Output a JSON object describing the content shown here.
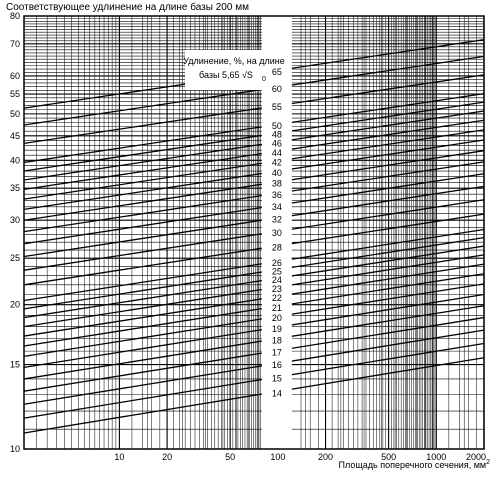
{
  "chart_data": {
    "type": "line",
    "title": "Соответствующее удлинение на длине базы 200 мм",
    "xlabel": "Площадь поперечного сечения, мм",
    "xlabel_sup": "2",
    "x_scale": "log",
    "y_scale": "log",
    "xlim": [
      2.5,
      2000
    ],
    "ylim": [
      10,
      80
    ],
    "grid": true,
    "x_ticks": [
      10,
      20,
      50,
      100,
      200,
      500,
      1000,
      2000
    ],
    "y_ticks": [
      10,
      15,
      20,
      25,
      30,
      35,
      40,
      45,
      50,
      55,
      60,
      70,
      80
    ],
    "series_label_title": "Удлинение, %, на длине базы 5,65 √S₀",
    "series_label_title_lines": [
      "Удлинение, %, на длине",
      "базы 5,65 √S",
      "0"
    ],
    "x": [
      2.5,
      2000
    ],
    "series": [
      {
        "name": "14",
        "values": [
          10.8,
          15.5
        ]
      },
      {
        "name": "15",
        "values": [
          11.6,
          16.6
        ]
      },
      {
        "name": "16",
        "values": [
          12.4,
          17.7
        ]
      },
      {
        "name": "17",
        "values": [
          13.2,
          18.8
        ]
      },
      {
        "name": "18",
        "values": [
          14.0,
          19.9
        ]
      },
      {
        "name": "19",
        "values": [
          14.8,
          21.0
        ]
      },
      {
        "name": "20",
        "values": [
          15.6,
          22.1
        ]
      },
      {
        "name": "21",
        "values": [
          16.4,
          23.2
        ]
      },
      {
        "name": "22",
        "values": [
          17.2,
          24.3
        ]
      },
      {
        "name": "23",
        "values": [
          18.0,
          25.4
        ]
      },
      {
        "name": "24",
        "values": [
          18.8,
          26.5
        ]
      },
      {
        "name": "25",
        "values": [
          19.6,
          27.6
        ]
      },
      {
        "name": "26",
        "values": [
          20.4,
          28.7
        ]
      },
      {
        "name": "28",
        "values": [
          22.0,
          30.9
        ]
      },
      {
        "name": "30",
        "values": [
          23.6,
          33.1
        ]
      },
      {
        "name": "32",
        "values": [
          25.2,
          35.3
        ]
      },
      {
        "name": "34",
        "values": [
          26.8,
          37.5
        ]
      },
      {
        "name": "36",
        "values": [
          28.4,
          39.7
        ]
      },
      {
        "name": "38",
        "values": [
          30.0,
          41.9
        ]
      },
      {
        "name": "40",
        "values": [
          31.6,
          44.1
        ]
      },
      {
        "name": "42",
        "values": [
          33.2,
          46.3
        ]
      },
      {
        "name": "44",
        "values": [
          34.8,
          48.5
        ]
      },
      {
        "name": "46",
        "values": [
          36.4,
          50.7
        ]
      },
      {
        "name": "48",
        "values": [
          38.0,
          52.9
        ]
      },
      {
        "name": "50",
        "values": [
          39.6,
          55.1
        ]
      },
      {
        "name": "55",
        "values": [
          43.4,
          60.3
        ]
      },
      {
        "name": "60",
        "values": [
          47.4,
          65.9
        ]
      },
      {
        "name": "65",
        "values": [
          51.4,
          71.4
        ]
      }
    ]
  }
}
